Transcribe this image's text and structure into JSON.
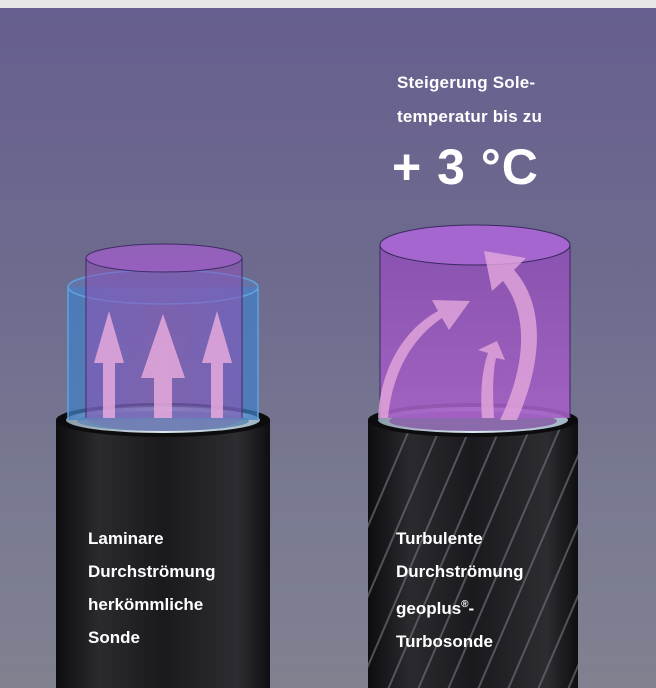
{
  "claim": {
    "line1": "Steigerung Sole-",
    "line2": "temperatur bis zu",
    "value": "+ 3 °C"
  },
  "left_probe": {
    "caption_lines": [
      "Laminare",
      "Durchströmung",
      "herkömmliche",
      "Sonde"
    ]
  },
  "right_probe": {
    "caption_lines": [
      "Turbulente",
      "Durchströmung",
      "geoplus",
      "Turbosonde"
    ],
    "trademark": "®",
    "hyphen": "-"
  },
  "colors": {
    "background_top": "#665f8f",
    "background_bottom": "#80818f",
    "pipe": "#1b1b1f",
    "fluid_purple": "#9a5bc0",
    "fluid_blue": "#4f86c4",
    "arrow": "#e5a9dc",
    "text": "#ffffff"
  },
  "icons": [
    "upward-flow-arrow-icon",
    "swirl-flow-arrow-icon"
  ]
}
